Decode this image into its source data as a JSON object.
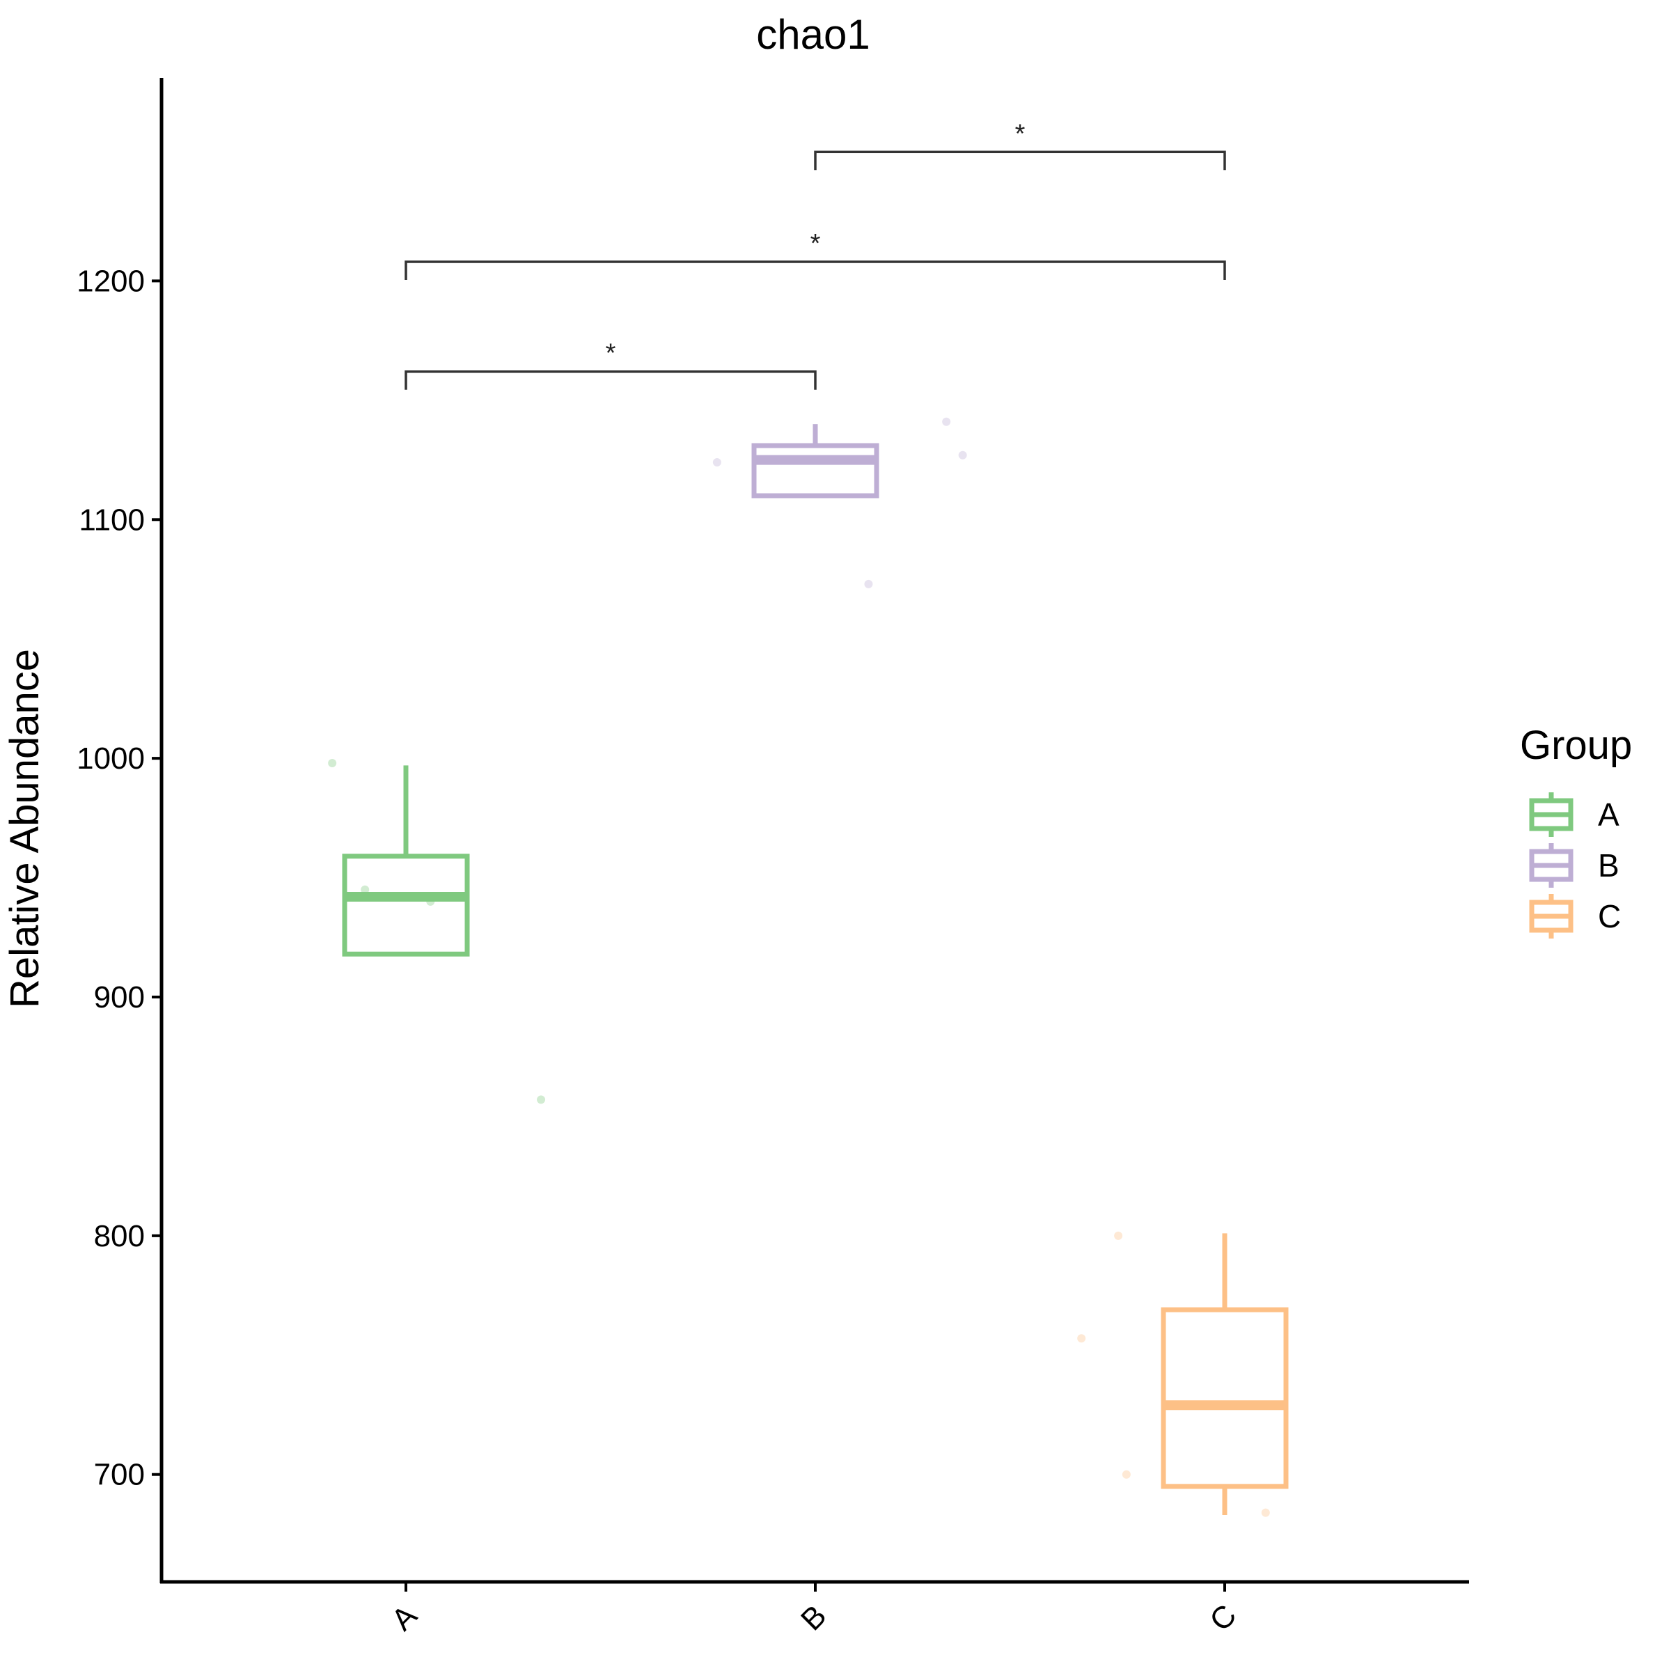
{
  "chart_data": {
    "type": "box",
    "title": "chao1",
    "xlabel": "",
    "ylabel": "Relative Abundance",
    "ylim": [
      655,
      1285
    ],
    "yticks": [
      700,
      800,
      900,
      1000,
      1100,
      1200
    ],
    "categories": [
      "A",
      "B",
      "C"
    ],
    "grid": false,
    "legend": {
      "title": "Group",
      "position": "right",
      "entries": [
        "A",
        "B",
        "C"
      ]
    },
    "colors": {
      "A": "#7FC97F",
      "B": "#BEAED4",
      "C": "#FDC086"
    },
    "boxes": [
      {
        "group": "A",
        "whisker_low": 918,
        "q1": 918,
        "median": 942,
        "q3": 959,
        "whisker_high": 997
      },
      {
        "group": "B",
        "whisker_low": 1110,
        "q1": 1110,
        "median": 1125,
        "q3": 1131,
        "whisker_high": 1140
      },
      {
        "group": "C",
        "whisker_low": 683,
        "q1": 695,
        "median": 729,
        "q3": 769,
        "whisker_high": 801
      }
    ],
    "points": [
      {
        "group": "A",
        "x_offset": -0.18,
        "y": 998
      },
      {
        "group": "A",
        "x_offset": -0.1,
        "y": 945
      },
      {
        "group": "A",
        "x_offset": 0.06,
        "y": 940
      },
      {
        "group": "A",
        "x_offset": 0.33,
        "y": 857
      },
      {
        "group": "B",
        "x_offset": -0.24,
        "y": 1124
      },
      {
        "group": "B",
        "x_offset": 0.13,
        "y": 1073
      },
      {
        "group": "B",
        "x_offset": 0.32,
        "y": 1141
      },
      {
        "group": "B",
        "x_offset": 0.36,
        "y": 1127
      },
      {
        "group": "C",
        "x_offset": -0.26,
        "y": 800
      },
      {
        "group": "C",
        "x_offset": -0.35,
        "y": 757
      },
      {
        "group": "C",
        "x_offset": -0.24,
        "y": 700
      },
      {
        "group": "C",
        "x_offset": 0.1,
        "y": 684
      }
    ],
    "comparisons": [
      {
        "from": "A",
        "to": "B",
        "y": 1162,
        "label": "*"
      },
      {
        "from": "A",
        "to": "C",
        "y": 1208,
        "label": "*"
      },
      {
        "from": "B",
        "to": "C",
        "y": 1254,
        "label": "*"
      }
    ]
  }
}
